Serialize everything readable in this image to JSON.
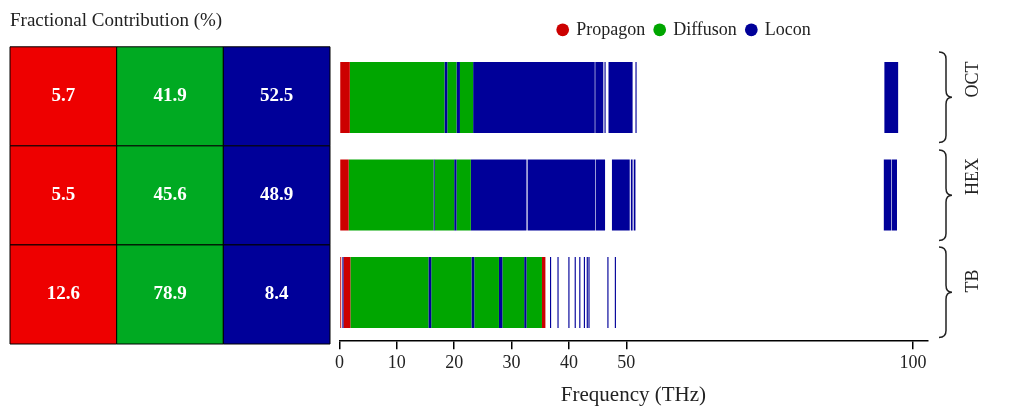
{
  "chart_data": [
    {
      "type": "heatmap",
      "title": "Fractional Contribution (%)",
      "categories": [
        null,
        null,
        null
      ],
      "y_categories": [
        null,
        null,
        null
      ],
      "cells": [
        [
          5.7,
          41.9,
          52.5
        ],
        [
          5.5,
          45.6,
          48.9
        ],
        [
          12.6,
          78.9,
          8.4
        ]
      ],
      "colors": [
        "#ee0000",
        "#00aa22",
        "#000099",
        "#ee0000",
        "#00aa22",
        "#000099",
        "#ee0000",
        "#00aa22",
        "#000099"
      ],
      "data_labels": true,
      "tick_labels": false
    },
    {
      "type": "bar",
      "orientation": "horizontal",
      "xlabel": "Frequency (THz)",
      "categories": [
        "OCT",
        "HEX",
        "TB"
      ],
      "xlim": [
        0,
        102.5
      ],
      "xticks": [
        0,
        10,
        20,
        30,
        40,
        50,
        100
      ],
      "legend": "top",
      "grid": false,
      "series": [
        {
          "name": "Propagon",
          "color": "#cc0000",
          "base": [
            0,
            null,
            null
          ],
          "values": [
            1.8,
            null,
            null
          ]
        },
        {
          "name": "Diffuson",
          "color": "#00a600",
          "base": [
            1.8,
            null,
            null
          ],
          "values": [
            16.5,
            null,
            null
          ]
        },
        {
          "name": "Locon",
          "color": "#000099",
          "base": [
            18.3,
            null,
            null
          ],
          "values": [
            0.5,
            null,
            null
          ]
        },
        {
          "color": "#00a600",
          "base": [
            18.8,
            null,
            null
          ],
          "values": [
            1.6,
            null,
            null
          ]
        },
        {
          "color": "#000099",
          "base": [
            20.4,
            null,
            null
          ],
          "values": [
            0.6,
            null,
            null
          ]
        },
        {
          "color": "#00a600",
          "base": [
            21.0,
            null,
            null
          ],
          "values": [
            2.3,
            null,
            null
          ]
        },
        {
          "color": "#000099",
          "base": [
            23.3,
            null,
            null
          ],
          "values": [
            21.2,
            null,
            null
          ]
        },
        {
          "color": "#000099",
          "base": [
            44.6,
            null,
            null
          ],
          "values": [
            1.4,
            null,
            null
          ]
        },
        {
          "color": "#000099",
          "base": [
            46.2,
            null,
            null
          ],
          "values": [
            0.2,
            null,
            null
          ]
        },
        {
          "color": "#000099",
          "base": [
            46.9,
            null,
            null
          ],
          "values": [
            4.2,
            null,
            null
          ]
        },
        {
          "color": "#000099",
          "base": [
            51.6,
            null,
            null
          ],
          "values": [
            0.2,
            null,
            null
          ]
        },
        {
          "color": "#000099",
          "base": [
            95.0,
            null,
            null
          ],
          "values": [
            2.4,
            null,
            null
          ]
        },
        {
          "color": "#cc0000",
          "base": [
            null,
            0,
            null
          ],
          "values": [
            null,
            1.6,
            null
          ]
        },
        {
          "color": "#00a600",
          "base": [
            null,
            1.6,
            null
          ],
          "values": [
            null,
            14.8,
            null
          ]
        },
        {
          "color": "#000099",
          "base": [
            null,
            16.4,
            null
          ],
          "values": [
            null,
            0.2,
            null
          ]
        },
        {
          "color": "#00a600",
          "base": [
            null,
            16.6,
            null
          ],
          "values": [
            null,
            3.4,
            null
          ]
        },
        {
          "color": "#000099",
          "base": [
            null,
            20.0,
            null
          ],
          "values": [
            null,
            0.4,
            null
          ]
        },
        {
          "color": "#00a600",
          "base": [
            null,
            20.4,
            null
          ],
          "values": [
            null,
            2.5,
            null
          ]
        },
        {
          "color": "#000099",
          "base": [
            null,
            22.9,
            null
          ],
          "values": [
            null,
            9.7,
            null
          ]
        },
        {
          "color": "#000099",
          "base": [
            null,
            32.8,
            null
          ],
          "values": [
            null,
            11.8,
            null
          ]
        },
        {
          "color": "#000099",
          "base": [
            null,
            44.7,
            null
          ],
          "values": [
            null,
            1.6,
            null
          ]
        },
        {
          "color": "#000099",
          "base": [
            null,
            47.5,
            null
          ],
          "values": [
            null,
            3.1,
            null
          ]
        },
        {
          "color": "#000099",
          "base": [
            null,
            50.8,
            null
          ],
          "values": [
            null,
            0.3,
            null
          ]
        },
        {
          "color": "#000099",
          "base": [
            null,
            51.3,
            null
          ],
          "values": [
            null,
            0.3,
            null
          ]
        },
        {
          "color": "#000099",
          "base": [
            null,
            94.9,
            null
          ],
          "values": [
            null,
            1.3,
            null
          ]
        },
        {
          "color": "#000099",
          "base": [
            null,
            96.3,
            null
          ],
          "values": [
            null,
            0.9,
            null
          ]
        },
        {
          "color": "#cc0000",
          "base": [
            null,
            null,
            0
          ],
          "values": [
            null,
            null,
            0.3
          ]
        },
        {
          "color": "#000099",
          "base": [
            null,
            null,
            0.5
          ],
          "values": [
            null,
            null,
            0.2
          ]
        },
        {
          "color": "#cc0000",
          "base": [
            null,
            null,
            0.7
          ],
          "values": [
            null,
            null,
            1.2
          ]
        },
        {
          "color": "#00a600",
          "base": [
            null,
            null,
            1.9
          ],
          "values": [
            null,
            null,
            13.6
          ]
        },
        {
          "color": "#000099",
          "base": [
            null,
            null,
            15.5
          ],
          "values": [
            null,
            null,
            0.5
          ]
        },
        {
          "color": "#00a600",
          "base": [
            null,
            null,
            16.0
          ],
          "values": [
            null,
            null,
            7.0
          ]
        },
        {
          "color": "#000099",
          "base": [
            null,
            null,
            23.0
          ],
          "values": [
            null,
            null,
            0.5
          ]
        },
        {
          "color": "#00a600",
          "base": [
            null,
            null,
            23.5
          ],
          "values": [
            null,
            null,
            4.3
          ]
        },
        {
          "color": "#000099",
          "base": [
            null,
            null,
            27.8
          ],
          "values": [
            null,
            null,
            0.6
          ]
        },
        {
          "color": "#00a600",
          "base": [
            null,
            null,
            28.4
          ],
          "values": [
            null,
            null,
            3.8
          ]
        },
        {
          "color": "#000099",
          "base": [
            null,
            null,
            32.2
          ],
          "values": [
            null,
            null,
            0.4
          ]
        },
        {
          "color": "#00a600",
          "base": [
            null,
            null,
            32.6
          ],
          "values": [
            null,
            null,
            2.7
          ]
        },
        {
          "color": "#cc0000",
          "base": [
            null,
            null,
            35.3
          ],
          "values": [
            null,
            null,
            0.6
          ]
        },
        {
          "color": "#000099",
          "base": [
            null,
            null,
            36.7
          ],
          "values": [
            null,
            null,
            0.2
          ]
        },
        {
          "color": "#000099",
          "base": [
            null,
            null,
            38.0
          ],
          "values": [
            null,
            null,
            0.2
          ]
        },
        {
          "color": "#000099",
          "base": [
            null,
            null,
            39.9
          ],
          "values": [
            null,
            null,
            0.2
          ]
        },
        {
          "color": "#000099",
          "base": [
            null,
            null,
            41.0
          ],
          "values": [
            null,
            null,
            0.2
          ]
        },
        {
          "color": "#000099",
          "base": [
            null,
            null,
            41.8
          ],
          "values": [
            null,
            null,
            0.2
          ]
        },
        {
          "color": "#000099",
          "base": [
            null,
            null,
            42.6
          ],
          "values": [
            null,
            null,
            0.2
          ]
        },
        {
          "color": "#000099",
          "base": [
            null,
            null,
            43.1
          ],
          "values": [
            null,
            null,
            0.2
          ]
        },
        {
          "color": "#000099",
          "base": [
            null,
            null,
            43.4
          ],
          "values": [
            null,
            null,
            0.2
          ]
        },
        {
          "color": "#000099",
          "base": [
            null,
            null,
            46.7
          ],
          "values": [
            null,
            null,
            0.2
          ]
        },
        {
          "color": "#000099",
          "base": [
            null,
            null,
            48.0
          ],
          "values": [
            null,
            null,
            0.2
          ]
        }
      ]
    }
  ]
}
